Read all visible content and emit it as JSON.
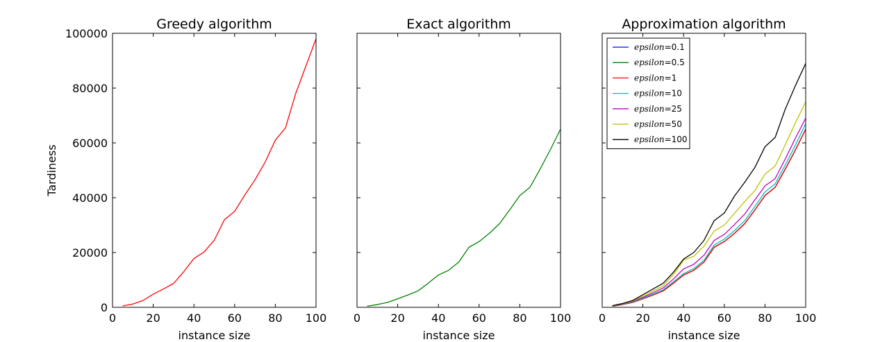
{
  "chart_data": [
    {
      "type": "line",
      "title": "Greedy algorithm",
      "xlabel": "instance size",
      "ylabel": "Tardiness",
      "xlim": [
        0,
        100
      ],
      "ylim": [
        0,
        100000
      ],
      "xticks": [
        0,
        20,
        40,
        60,
        80,
        100
      ],
      "yticks": [
        0,
        20000,
        40000,
        60000,
        80000,
        100000
      ],
      "show_yticklabels": true,
      "legend": null,
      "series": [
        {
          "color": "#ff0000",
          "x": [
            5,
            10,
            15,
            20,
            25,
            30,
            35,
            40,
            45,
            50,
            55,
            60,
            65,
            70,
            75,
            80,
            85,
            90,
            95,
            100
          ],
          "y": [
            500,
            1200,
            2500,
            4800,
            6700,
            8700,
            13000,
            17800,
            20200,
            24500,
            32000,
            35000,
            41000,
            46500,
            53000,
            61000,
            65500,
            78000,
            88000,
            98000
          ]
        }
      ]
    },
    {
      "type": "line",
      "title": "Exact algorithm",
      "xlabel": "instance size",
      "ylabel": "",
      "xlim": [
        0,
        100
      ],
      "ylim": [
        0,
        100000
      ],
      "xticks": [
        0,
        20,
        40,
        60,
        80,
        100
      ],
      "yticks": [
        0,
        20000,
        40000,
        60000,
        80000,
        100000
      ],
      "show_yticklabels": false,
      "legend": null,
      "series": [
        {
          "color": "#008000",
          "x": [
            5,
            10,
            15,
            20,
            25,
            30,
            35,
            40,
            45,
            50,
            55,
            60,
            65,
            70,
            75,
            80,
            85,
            90,
            95,
            100
          ],
          "y": [
            400,
            1000,
            1800,
            3100,
            4500,
            6000,
            8800,
            11800,
            13500,
            16500,
            21900,
            24000,
            27000,
            30500,
            35500,
            40800,
            43800,
            50500,
            57500,
            65000
          ]
        }
      ]
    },
    {
      "type": "line",
      "title": "Approximation algorithm",
      "xlabel": "instance size",
      "ylabel": "",
      "xlim": [
        0,
        100
      ],
      "ylim": [
        0,
        100000
      ],
      "xticks": [
        0,
        20,
        40,
        60,
        80,
        100
      ],
      "yticks": [
        0,
        20000,
        40000,
        60000,
        80000,
        100000
      ],
      "show_yticklabels": false,
      "legend": "top-left",
      "x": [
        5,
        10,
        15,
        20,
        25,
        30,
        35,
        40,
        45,
        50,
        55,
        60,
        65,
        70,
        75,
        80,
        85,
        90,
        95,
        100
      ],
      "series": [
        {
          "name": "epsilon",
          "suffix": "=0.1",
          "color": "#0000ff",
          "y": [
            400,
            1000,
            1800,
            3100,
            4500,
            6000,
            8800,
            11800,
            13500,
            16500,
            21900,
            24000,
            27000,
            30500,
            35500,
            40800,
            43800,
            50500,
            57500,
            65000
          ]
        },
        {
          "name": "epsilon",
          "suffix": "=0.5",
          "color": "#008000",
          "y": [
            400,
            1000,
            1800,
            3100,
            4500,
            6000,
            8800,
            11800,
            13500,
            16500,
            21900,
            24000,
            27000,
            30500,
            35500,
            40800,
            43800,
            50500,
            57500,
            65000
          ]
        },
        {
          "name": "epsilon",
          "suffix": "=1",
          "color": "#ff0000",
          "y": [
            400,
            1000,
            1800,
            3100,
            4500,
            6000,
            8800,
            11800,
            13500,
            16500,
            21900,
            24000,
            27000,
            30500,
            35500,
            40800,
            43800,
            50500,
            57500,
            65000
          ]
        },
        {
          "name": "epsilon",
          "suffix": "=10",
          "color": "#00bfbf",
          "y": [
            450,
            1100,
            1950,
            3300,
            4800,
            6400,
            9300,
            12300,
            14100,
            17200,
            22700,
            24900,
            28000,
            31600,
            36800,
            42100,
            45100,
            52000,
            59300,
            67000
          ]
        },
        {
          "name": "epsilon",
          "suffix": "=25",
          "color": "#bf00bf",
          "y": [
            500,
            1200,
            2150,
            3600,
            5300,
            7100,
            10300,
            14000,
            15700,
            19000,
            24400,
            26600,
            30200,
            34000,
            39200,
            44300,
            47000,
            54200,
            61800,
            69000
          ]
        },
        {
          "name": "epsilon",
          "suffix": "=50",
          "color": "#bfbf00",
          "y": [
            550,
            1300,
            2300,
            4000,
            5900,
            7900,
            12000,
            17200,
            18600,
            22300,
            27800,
            30000,
            34300,
            38600,
            42600,
            48600,
            51600,
            59400,
            67400,
            75000
          ]
        },
        {
          "name": "epsilon",
          "suffix": "=100",
          "color": "#000000",
          "y": [
            600,
            1400,
            2500,
            4600,
            6700,
            8800,
            12800,
            17600,
            20000,
            24400,
            31600,
            34400,
            40600,
            45600,
            51000,
            58600,
            62000,
            72400,
            81000,
            89000
          ]
        }
      ]
    }
  ]
}
